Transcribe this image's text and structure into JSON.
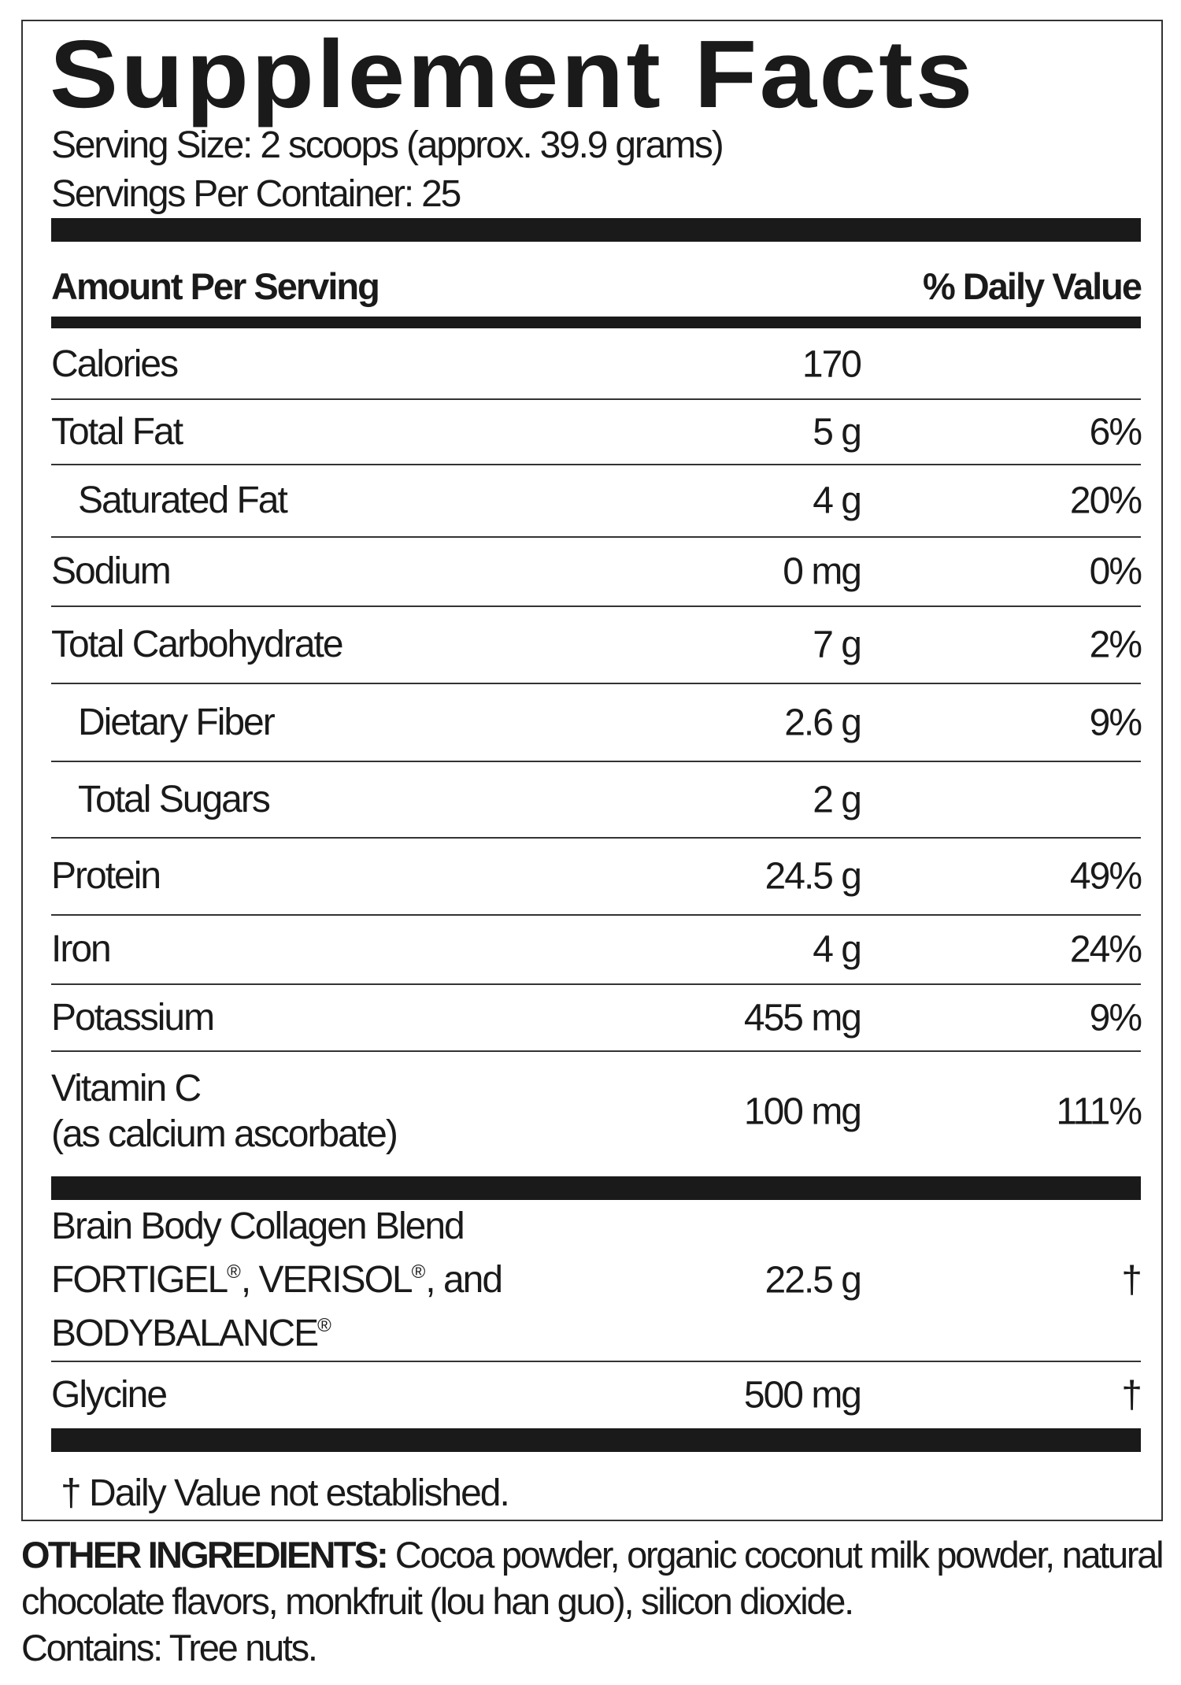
{
  "title": "Supplement Facts",
  "serving_size": "Serving Size: 2 scoops (approx. 39.9 grams)",
  "servings_per_container": "Servings Per Container: 25",
  "header": {
    "amount": "Amount Per Serving",
    "dv": "% Daily Value"
  },
  "rows": [
    {
      "name": "Calories",
      "amount": "170",
      "dv": ""
    },
    {
      "name": "Total Fat",
      "amount": "5 g",
      "dv": "6%"
    },
    {
      "name": "Saturated Fat",
      "amount": "4 g",
      "dv": "20%"
    },
    {
      "name": "Sodium",
      "amount": "0 mg",
      "dv": "0%"
    },
    {
      "name": "Total Carbohydrate",
      "amount": "7 g",
      "dv": "2%"
    },
    {
      "name": "Dietary Fiber",
      "amount": "2.6 g",
      "dv": "9%"
    },
    {
      "name": "Total Sugars",
      "amount": "2 g",
      "dv": ""
    },
    {
      "name": "Protein",
      "amount": "24.5 g",
      "dv": "49%"
    },
    {
      "name": "Iron",
      "amount": "4 g",
      "dv": "24%"
    },
    {
      "name": "Potassium",
      "amount": "455 mg",
      "dv": "9%"
    },
    {
      "name": "Vitamin C",
      "name2": "(as calcium ascorbate)",
      "amount": "100 mg",
      "dv": "111%"
    }
  ],
  "blend": {
    "line1": "Brain Body Collagen Blend",
    "fortigel": "FORTIGEL",
    "verisol": ", VERISOL",
    "and": ", and",
    "bodybalance": "BODYBALANCE",
    "reg": "®",
    "amount": "22.5 g",
    "dv": "†"
  },
  "glycine": {
    "name": "Glycine",
    "amount": "500 mg",
    "dv": "†"
  },
  "footnote": "† Daily Value not established.",
  "other_ingredients": {
    "label": "OTHER INGREDIENTS:",
    "text": " Cocoa powder, organic coconut milk powder, natural chocolate flavors, monkfruit (lou han guo), silicon dioxide.",
    "contains": "Contains: Tree nuts."
  }
}
